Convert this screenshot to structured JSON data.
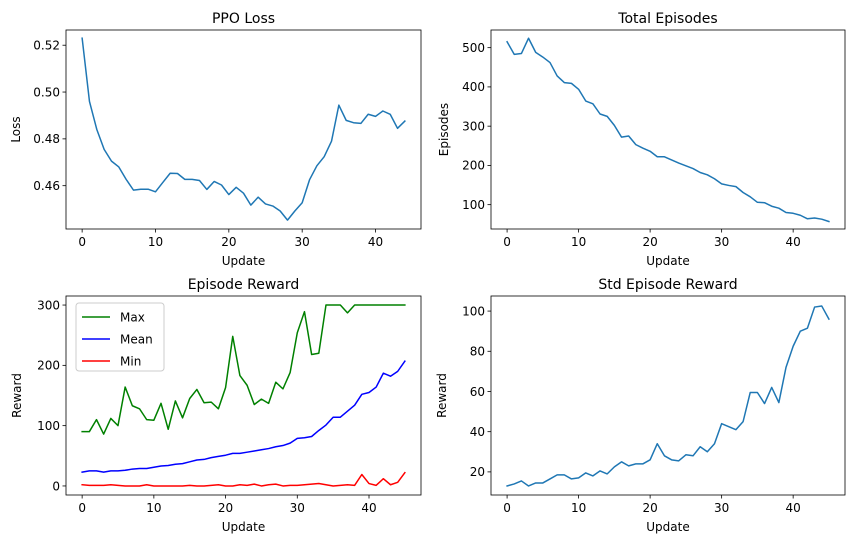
{
  "chart_data": [
    {
      "type": "line",
      "title": "PPO Loss",
      "xlabel": "Update",
      "ylabel": "Loss",
      "xlim": [
        -2.2,
        46.2
      ],
      "ylim": [
        0.4415,
        0.5265
      ],
      "xticks": [
        0,
        10,
        20,
        30,
        40
      ],
      "yticks": [
        0.46,
        0.48,
        0.5,
        0.52
      ],
      "ytick_labels": [
        "0.46",
        "0.48",
        "0.50",
        "0.52"
      ],
      "series": [
        {
          "color": "#1f77b4",
          "x": [
            0,
            1,
            2,
            3,
            4,
            5,
            6,
            7,
            8,
            9,
            10,
            11,
            12,
            13,
            14,
            15,
            16,
            17,
            18,
            19,
            20,
            21,
            22,
            23,
            24,
            25,
            26,
            27,
            28,
            29,
            30,
            31,
            32,
            33,
            34,
            35,
            36,
            37,
            38,
            39,
            40,
            41,
            42,
            43,
            44
          ],
          "values": [
            0.523,
            0.496,
            0.484,
            0.4755,
            0.4705,
            0.468,
            0.4627,
            0.4581,
            0.4585,
            0.4585,
            0.4574,
            0.4614,
            0.4653,
            0.4652,
            0.4627,
            0.4627,
            0.4622,
            0.4584,
            0.4618,
            0.4603,
            0.4562,
            0.4593,
            0.4568,
            0.4517,
            0.4551,
            0.4522,
            0.4513,
            0.4492,
            0.4453,
            0.4492,
            0.4527,
            0.4625,
            0.4685,
            0.4724,
            0.479,
            0.4944,
            0.4879,
            0.4869,
            0.4866,
            0.4905,
            0.4896,
            0.4919,
            0.4905,
            0.4845,
            0.4876
          ]
        }
      ]
    },
    {
      "type": "line",
      "title": "Total Episodes",
      "xlabel": "Update",
      "ylabel": "Episodes",
      "xlim": [
        -2.25,
        47.25
      ],
      "ylim": [
        38,
        545
      ],
      "xticks": [
        0,
        10,
        20,
        30,
        40
      ],
      "yticks": [
        100,
        200,
        300,
        400,
        500
      ],
      "ytick_labels": [
        "100",
        "200",
        "300",
        "400",
        "500"
      ],
      "series": [
        {
          "color": "#1f77b4",
          "x": [
            0,
            1,
            2,
            3,
            4,
            5,
            6,
            7,
            8,
            9,
            10,
            11,
            12,
            13,
            14,
            15,
            16,
            17,
            18,
            19,
            20,
            21,
            22,
            23,
            24,
            25,
            26,
            27,
            28,
            29,
            30,
            31,
            32,
            33,
            34,
            35,
            36,
            37,
            38,
            39,
            40,
            41,
            42,
            43,
            44,
            45
          ],
          "values": [
            515,
            483,
            485,
            524,
            488,
            476,
            462,
            428,
            411,
            409,
            394,
            364,
            357,
            331,
            325,
            302,
            272,
            275,
            253,
            244,
            236,
            222,
            222,
            214,
            206,
            199,
            192,
            182,
            176,
            166,
            153,
            149,
            146,
            131,
            120,
            106,
            105,
            96,
            91,
            80,
            78,
            73,
            64,
            66,
            63,
            57
          ]
        }
      ]
    },
    {
      "type": "line",
      "title": "Episode Reward",
      "xlabel": "Update",
      "ylabel": "Reward",
      "xlim": [
        -2.25,
        47.25
      ],
      "ylim": [
        -15,
        315
      ],
      "xticks": [
        0,
        10,
        20,
        30,
        40
      ],
      "yticks": [
        0,
        100,
        200,
        300
      ],
      "ytick_labels": [
        "0",
        "100",
        "200",
        "300"
      ],
      "legend": {
        "placement": "upper-left"
      },
      "series": [
        {
          "name": "Max",
          "color": "#008000",
          "x": [
            0,
            1,
            2,
            3,
            4,
            5,
            6,
            7,
            8,
            9,
            10,
            11,
            12,
            13,
            14,
            15,
            16,
            17,
            18,
            19,
            20,
            21,
            22,
            23,
            24,
            25,
            26,
            27,
            28,
            29,
            30,
            31,
            32,
            33,
            34,
            35,
            36,
            37,
            38,
            39,
            40,
            41,
            42,
            43,
            44,
            45
          ],
          "values": [
            90,
            90,
            110,
            86,
            112,
            100,
            164,
            133,
            128,
            110,
            109,
            137,
            94,
            141,
            113,
            145,
            160,
            138,
            139,
            128,
            163,
            248,
            183,
            167,
            135,
            144,
            137,
            172,
            161,
            188,
            254,
            289,
            218,
            220,
            300,
            300,
            300,
            287,
            300,
            300,
            300,
            300,
            300,
            300,
            300,
            300
          ]
        },
        {
          "name": "Mean",
          "color": "#0000ff",
          "x": [
            0,
            1,
            2,
            3,
            4,
            5,
            6,
            7,
            8,
            9,
            10,
            11,
            12,
            13,
            14,
            15,
            16,
            17,
            18,
            19,
            20,
            21,
            22,
            23,
            24,
            25,
            26,
            27,
            28,
            29,
            30,
            31,
            32,
            33,
            34,
            35,
            36,
            37,
            38,
            39,
            40,
            41,
            42,
            43,
            44,
            45
          ],
          "values": [
            23,
            25,
            25,
            23,
            25,
            25,
            26,
            28,
            29,
            29,
            31,
            33,
            34,
            36,
            37,
            40,
            43,
            44,
            47,
            49,
            51,
            54,
            54,
            56,
            58,
            60,
            62,
            65,
            67,
            71,
            79,
            80,
            82,
            92,
            101,
            114,
            114,
            124,
            134,
            152,
            155,
            164,
            187,
            182,
            190,
            207
          ]
        },
        {
          "name": "Min",
          "color": "#ff0000",
          "x": [
            0,
            1,
            2,
            3,
            4,
            5,
            6,
            7,
            8,
            9,
            10,
            11,
            12,
            13,
            14,
            15,
            16,
            17,
            18,
            19,
            20,
            21,
            22,
            23,
            24,
            25,
            26,
            27,
            28,
            29,
            30,
            31,
            32,
            33,
            34,
            35,
            36,
            37,
            38,
            39,
            40,
            41,
            42,
            43,
            44,
            45
          ],
          "values": [
            2,
            1,
            1,
            1,
            2,
            1,
            0,
            0,
            0,
            2,
            0,
            0,
            0,
            0,
            0,
            1,
            0,
            0,
            1,
            2,
            0,
            0,
            2,
            1,
            3,
            0,
            2,
            3,
            0,
            1,
            1,
            2,
            3,
            4,
            2,
            0,
            1,
            2,
            1,
            19,
            4,
            1,
            12,
            2,
            6,
            22
          ]
        }
      ]
    },
    {
      "type": "line",
      "title": "Std Episode Reward",
      "xlabel": "Update",
      "ylabel": "Reward",
      "xlim": [
        -2.25,
        47.25
      ],
      "ylim": [
        8.5,
        107.5
      ],
      "xticks": [
        0,
        10,
        20,
        30,
        40
      ],
      "yticks": [
        20,
        40,
        60,
        80,
        100
      ],
      "ytick_labels": [
        "20",
        "40",
        "60",
        "80",
        "100"
      ],
      "series": [
        {
          "color": "#1f77b4",
          "x": [
            0,
            1,
            2,
            3,
            4,
            5,
            6,
            7,
            8,
            9,
            10,
            11,
            12,
            13,
            14,
            15,
            16,
            17,
            18,
            19,
            20,
            21,
            22,
            23,
            24,
            25,
            26,
            27,
            28,
            29,
            30,
            31,
            32,
            33,
            34,
            35,
            36,
            37,
            38,
            39,
            40,
            41,
            42,
            43,
            44,
            45
          ],
          "values": [
            13,
            14,
            15.5,
            13,
            14.5,
            14.5,
            16.5,
            18.5,
            18.5,
            16.5,
            17,
            19.5,
            18,
            20.5,
            19,
            22.5,
            25,
            23,
            24,
            24,
            26,
            34,
            28,
            26,
            25.5,
            28.5,
            28,
            32.5,
            30,
            34,
            44,
            42.5,
            41,
            45,
            59.5,
            59.5,
            54,
            62,
            54.5,
            72,
            82.5,
            90,
            91.5,
            102,
            102.5,
            96
          ]
        }
      ]
    }
  ]
}
